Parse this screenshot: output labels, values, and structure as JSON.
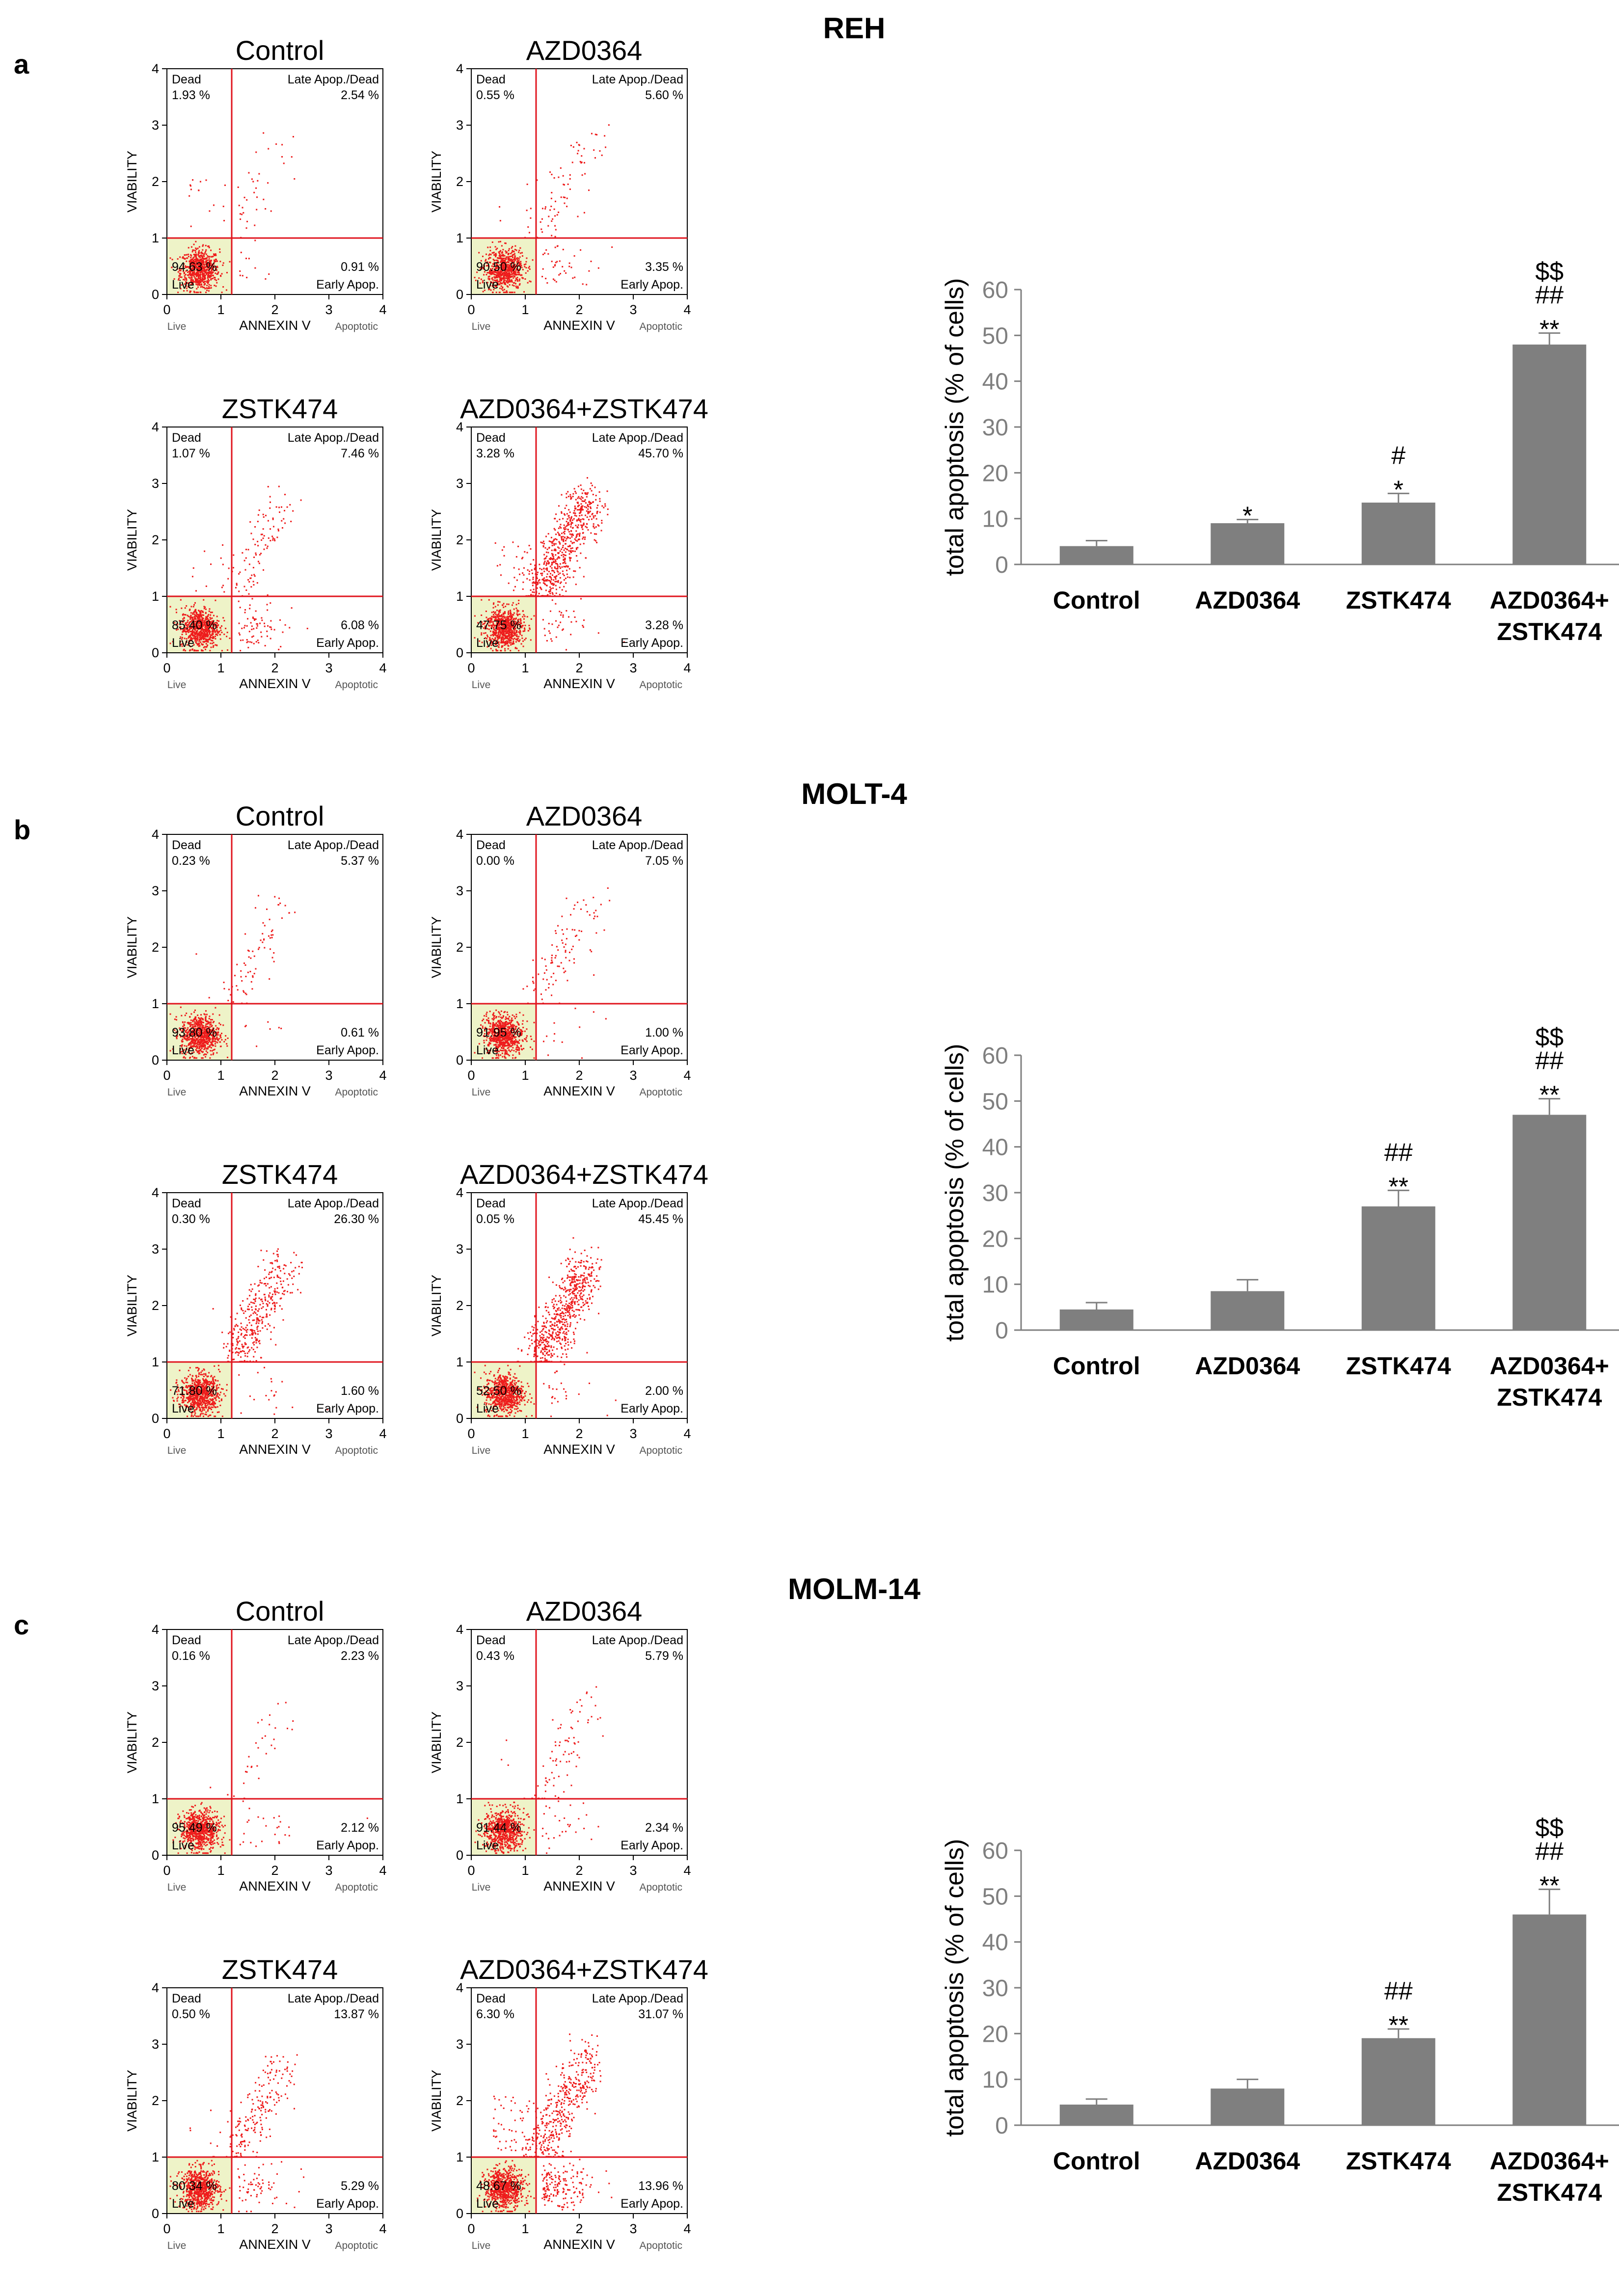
{
  "chart_data": [
    {
      "panel": "a",
      "cell_line": "REH",
      "flow_plots": [
        {
          "title": "Control",
          "dead_label": "Dead",
          "dead": "1.93 %",
          "late_label": "Late Apop./Dead",
          "late": "2.54 %",
          "live_label": "Live",
          "live": "94.63 %",
          "early_label": "Early Apop.",
          "early": "0.91 %"
        },
        {
          "title": "AZD0364",
          "dead_label": "Dead",
          "dead": "0.55 %",
          "late_label": "Late Apop./Dead",
          "late": "5.60 %",
          "live_label": "Live",
          "live": "90.50 %",
          "early_label": "Early Apop.",
          "early": "3.35 %"
        },
        {
          "title": "ZSTK474",
          "dead_label": "Dead",
          "dead": "1.07 %",
          "late_label": "Late Apop./Dead",
          "late": "7.46 %",
          "live_label": "Live",
          "live": "85.40 %",
          "early_label": "Early Apop.",
          "early": "6.08 %"
        },
        {
          "title": "AZD0364+ZSTK474",
          "dead_label": "Dead",
          "dead": "3.28 %",
          "late_label": "Late Apop./Dead",
          "late": "45.70 %",
          "live_label": "Live",
          "live": "47.75 %",
          "early_label": "Early Apop.",
          "early": "3.28 %"
        }
      ],
      "bar": {
        "type": "bar",
        "ylabel": "total apoptosis (% of cells)",
        "ylim": [
          0,
          60
        ],
        "yticks": [
          "0",
          "10",
          "20",
          "30",
          "40",
          "50",
          "60"
        ],
        "categories": [
          "Control",
          "AZD0364",
          "ZSTK474",
          "AZD0364+\nZSTK474"
        ],
        "values": [
          4,
          9,
          13.5,
          48
        ],
        "errors": [
          1.2,
          0.8,
          2,
          2.5
        ],
        "annotations": [
          [],
          [
            "*"
          ],
          [
            "#",
            "*"
          ],
          [
            "$$",
            "##",
            "**"
          ]
        ]
      }
    },
    {
      "panel": "b",
      "cell_line": "MOLT-4",
      "flow_plots": [
        {
          "title": "Control",
          "dead_label": "Dead",
          "dead": "0.23 %",
          "late_label": "Late Apop./Dead",
          "late": "5.37 %",
          "live_label": "Live",
          "live": "93.80 %",
          "early_label": "Early Apop.",
          "early": "0.61 %"
        },
        {
          "title": "AZD0364",
          "dead_label": "Dead",
          "dead": "0.00 %",
          "late_label": "Late Apop./Dead",
          "late": "7.05 %",
          "live_label": "Live",
          "live": "91.95 %",
          "early_label": "Early Apop.",
          "early": "1.00 %"
        },
        {
          "title": "ZSTK474",
          "dead_label": "Dead",
          "dead": "0.30 %",
          "late_label": "Late Apop./Dead",
          "late": "26.30 %",
          "live_label": "Live",
          "live": "71.80 %",
          "early_label": "Early Apop.",
          "early": "1.60 %"
        },
        {
          "title": "AZD0364+ZSTK474",
          "dead_label": "Dead",
          "dead": "0.05 %",
          "late_label": "Late Apop./Dead",
          "late": "45.45 %",
          "live_label": "Live",
          "live": "52.50 %",
          "early_label": "Early Apop.",
          "early": "2.00 %"
        }
      ],
      "bar": {
        "type": "bar",
        "ylabel": "total apoptosis (% of cells)",
        "ylim": [
          0,
          60
        ],
        "yticks": [
          "0",
          "10",
          "20",
          "30",
          "40",
          "50",
          "60"
        ],
        "categories": [
          "Control",
          "AZD0364",
          "ZSTK474",
          "AZD0364+\nZSTK474"
        ],
        "values": [
          4.5,
          8.5,
          27,
          47
        ],
        "errors": [
          1.5,
          2.5,
          3.5,
          3.5
        ],
        "annotations": [
          [],
          [],
          [
            "##",
            "**"
          ],
          [
            "$$",
            "##",
            "**"
          ]
        ]
      }
    },
    {
      "panel": "c",
      "cell_line": "MOLM-14",
      "flow_plots": [
        {
          "title": "Control",
          "dead_label": "Dead",
          "dead": "0.16 %",
          "late_label": "Late Apop./Dead",
          "late": "2.23 %",
          "live_label": "Live",
          "live": "95.49 %",
          "early_label": "Early Apop.",
          "early": "2.12 %"
        },
        {
          "title": "AZD0364",
          "dead_label": "Dead",
          "dead": "0.43 %",
          "late_label": "Late Apop./Dead",
          "late": "5.79 %",
          "live_label": "Live",
          "live": "91.44 %",
          "early_label": "Early Apop.",
          "early": "2.34 %"
        },
        {
          "title": "ZSTK474",
          "dead_label": "Dead",
          "dead": "0.50 %",
          "late_label": "Late Apop./Dead",
          "late": "13.87 %",
          "live_label": "Live",
          "live": "80.34 %",
          "early_label": "Early Apop.",
          "early": "5.29 %"
        },
        {
          "title": "AZD0364+ZSTK474",
          "dead_label": "Dead",
          "dead": "6.30 %",
          "late_label": "Late Apop./Dead",
          "late": "31.07 %",
          "live_label": "Live",
          "live": "48.67 %",
          "early_label": "Early Apop.",
          "early": "13.96 %"
        }
      ],
      "bar": {
        "type": "bar",
        "ylabel": "total apoptosis (% of cells)",
        "ylim": [
          0,
          60
        ],
        "yticks": [
          "0",
          "10",
          "20",
          "30",
          "40",
          "50",
          "60"
        ],
        "categories": [
          "Control",
          "AZD0364",
          "ZSTK474",
          "AZD0364+\nZSTK474"
        ],
        "values": [
          4.5,
          8,
          19,
          46
        ],
        "errors": [
          1.2,
          2,
          2,
          5.5
        ],
        "annotations": [
          [],
          [],
          [
            "##",
            "**"
          ],
          [
            "$$",
            "##",
            "**"
          ]
        ]
      }
    }
  ],
  "flow_axes": {
    "xlabel": "ANNEXIN V",
    "ylabel": "VIABILITY",
    "x_left_note": "Live",
    "x_right_note": "Apoptotic",
    "ticks": [
      "0",
      "1",
      "2",
      "3",
      "4"
    ]
  },
  "colors": {
    "bar": "#7f7f7f",
    "gate": "#e0141e",
    "dot": "#ee1c1c",
    "live_fill": "#eef3c8",
    "axis_tick": "#7f7f7f"
  }
}
